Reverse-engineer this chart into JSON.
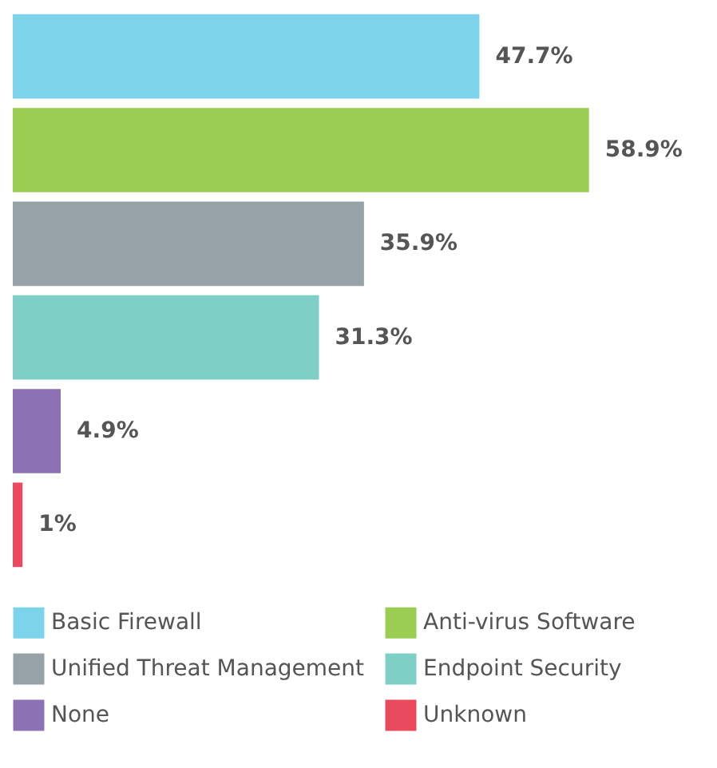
{
  "chart_data": {
    "type": "bar",
    "orientation": "horizontal",
    "categories": [
      null,
      null,
      null,
      null,
      null,
      null
    ],
    "series": [
      {
        "name": "Basic Firewall",
        "color": "#7dd3ea",
        "values": [
          47.7,
          null,
          null,
          null,
          null,
          null
        ],
        "value_labels": [
          "47.7%",
          null,
          null,
          null,
          null,
          null
        ]
      },
      {
        "name": "Anti-virus Software",
        "color": "#9ccd53",
        "values": [
          null,
          58.9,
          null,
          null,
          null,
          null
        ],
        "value_labels": [
          null,
          "58.9%",
          null,
          null,
          null,
          null
        ]
      },
      {
        "name": "Unified Threat Management",
        "color": "#96a1a8",
        "values": [
          null,
          null,
          35.9,
          null,
          null,
          null
        ],
        "value_labels": [
          null,
          null,
          "35.9%",
          null,
          null,
          null
        ]
      },
      {
        "name": "Endpoint Security",
        "color": "#7ecfc6",
        "values": [
          null,
          null,
          null,
          31.3,
          null,
          null
        ],
        "value_labels": [
          null,
          null,
          null,
          "31.3%",
          null,
          null
        ]
      },
      {
        "name": "None",
        "color": "#8c72b5",
        "values": [
          null,
          null,
          null,
          null,
          4.9,
          null
        ],
        "value_labels": [
          null,
          null,
          null,
          null,
          "4.9%",
          null
        ]
      },
      {
        "name": "Unknown",
        "color": "#ea4a5e",
        "values": [
          null,
          null,
          null,
          null,
          null,
          1
        ],
        "value_labels": [
          null,
          null,
          null,
          null,
          null,
          "1%"
        ]
      }
    ],
    "legend": "bottom",
    "tick_labels": false,
    "stacked": true
  }
}
